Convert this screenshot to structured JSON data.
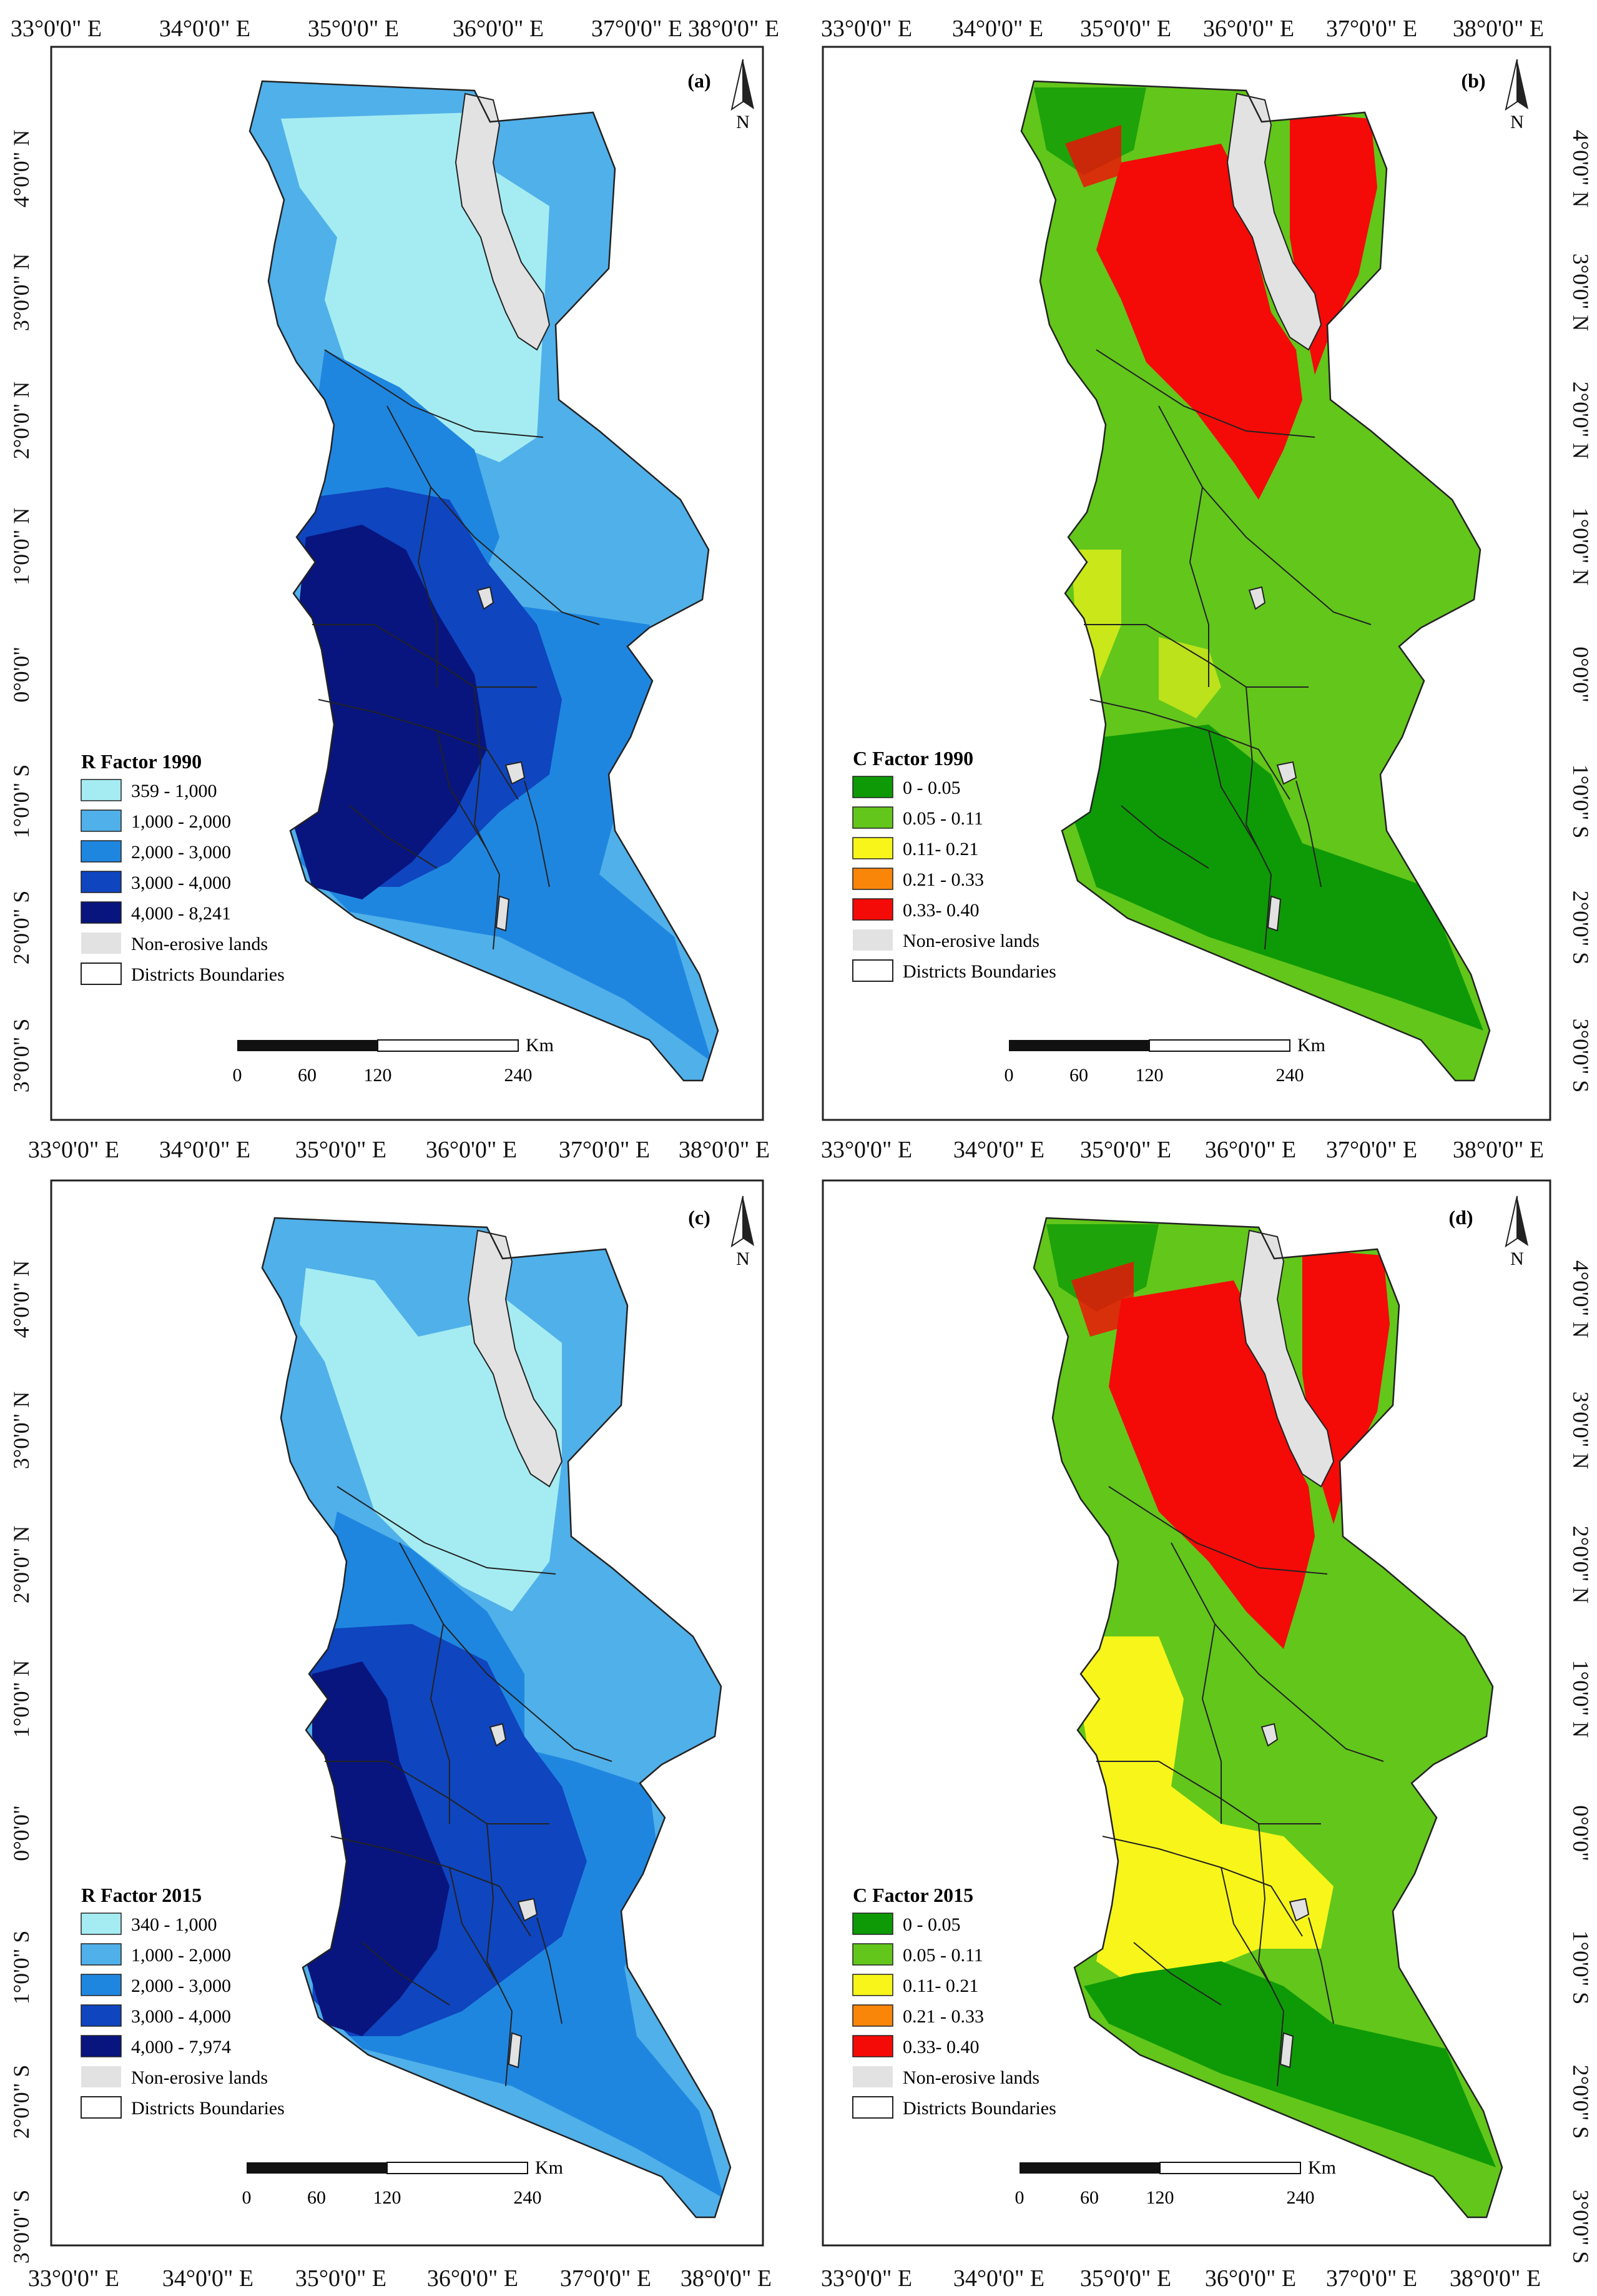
{
  "axes": {
    "lon_labels": [
      "33°0'0\" E",
      "34°0'0\" E",
      "35°0'0\" E",
      "36°0'0\" E",
      "37°0'0\" E",
      "38°0'0\" E"
    ],
    "lat_labels": [
      "4°0'0\" N",
      "3°0'0\" N",
      "2°0'0\" N",
      "1°0'0\" N",
      "0°0'0\"",
      "1°0'0\" S",
      "2°0'0\" S",
      "3°0'0\" S"
    ]
  },
  "north_arrow": "N",
  "scale_bar": {
    "ticks": [
      "0",
      "60",
      "120",
      "240"
    ],
    "unit": "Km"
  },
  "panels": [
    {
      "id": "a",
      "label": "(a)",
      "legend_title": "R  Factor 1990",
      "legend": [
        {
          "label": "359 - 1,000",
          "color": "#a5ecf2"
        },
        {
          "label": "1,000 - 2,000",
          "color": "#50b0e9"
        },
        {
          "label": "2,000 - 3,000",
          "color": "#1f86e0"
        },
        {
          "label": "3,000 - 4,000",
          "color": "#0f45bf"
        },
        {
          "label": "4,000 - 8,241",
          "color": "#08157e"
        },
        {
          "label": "Non-erosive lands",
          "color": "#e2e2e2"
        },
        {
          "label": "Districts Boundaries",
          "color": "#ffffff"
        }
      ]
    },
    {
      "id": "b",
      "label": "(b)",
      "legend_title": "C  Factor 1990",
      "legend": [
        {
          "label": "0 - 0.05",
          "color": "#0e9a06"
        },
        {
          "label": "0.05 - 0.11",
          "color": "#63c61b"
        },
        {
          "label": "0.11- 0.21",
          "color": "#f7f51a"
        },
        {
          "label": "0.21 - 0.33",
          "color": "#f98509"
        },
        {
          "label": "0.33- 0.40",
          "color": "#f40a07"
        },
        {
          "label": "Non-erosive lands",
          "color": "#e2e2e2"
        },
        {
          "label": "Districts Boundaries",
          "color": "#ffffff"
        }
      ]
    },
    {
      "id": "c",
      "label": "(c)",
      "legend_title": "R  Factor 2015",
      "legend": [
        {
          "label": "340 - 1,000",
          "color": "#a5ecf2"
        },
        {
          "label": "1,000 - 2,000",
          "color": "#50b0e9"
        },
        {
          "label": "2,000 - 3,000",
          "color": "#1f86e0"
        },
        {
          "label": "3,000 - 4,000",
          "color": "#0f45bf"
        },
        {
          "label": "4,000 - 7,974",
          "color": "#08157e"
        },
        {
          "label": "Non-erosive lands",
          "color": "#e2e2e2"
        },
        {
          "label": "Districts Boundaries",
          "color": "#ffffff"
        }
      ]
    },
    {
      "id": "d",
      "label": "(d)",
      "legend_title": "C  Factor 2015",
      "legend": [
        {
          "label": "0 - 0.05",
          "color": "#0e9a06"
        },
        {
          "label": "0.05 - 0.11",
          "color": "#63c61b"
        },
        {
          "label": "0.11- 0.21",
          "color": "#f7f51a"
        },
        {
          "label": "0.21 - 0.33",
          "color": "#f98509"
        },
        {
          "label": "0.33- 0.40",
          "color": "#f40a07"
        },
        {
          "label": "Non-erosive lands",
          "color": "#e2e2e2"
        },
        {
          "label": "Districts Boundaries",
          "color": "#ffffff"
        }
      ]
    }
  ]
}
